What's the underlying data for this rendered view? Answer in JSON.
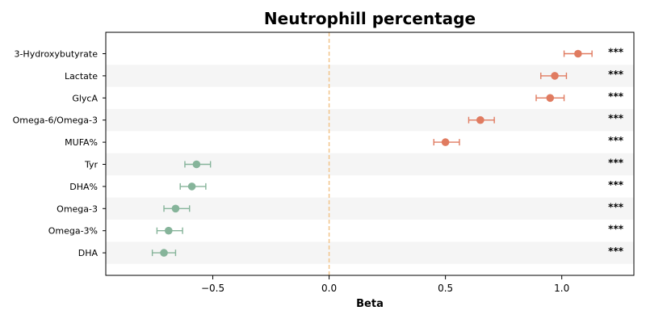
{
  "chart_data": {
    "type": "forest",
    "title": "Neutrophill percentage",
    "xlabel": "Beta",
    "xlim": [
      -0.96,
      1.31
    ],
    "x_ticks": [
      -0.5,
      0.0,
      0.5,
      1.0
    ],
    "x_tick_labels": [
      "−0.5",
      "0.0",
      "0.5",
      "1.0"
    ],
    "reference_line": 0.0,
    "reference_line_color": "#f2c48a",
    "band_color": "#f5f5f5",
    "categories": [
      "3-Hydroxybutyrate",
      "Lactate",
      "GlycA",
      "Omega-6/Omega-3",
      "MUFA%",
      "Tyr",
      "DHA%",
      "Omega-3",
      "Omega-3%",
      "DHA"
    ],
    "beta": [
      1.07,
      0.97,
      0.95,
      0.65,
      0.5,
      -0.57,
      -0.59,
      -0.66,
      -0.69,
      -0.71
    ],
    "ci_lower": [
      1.01,
      0.91,
      0.89,
      0.6,
      0.45,
      -0.62,
      -0.64,
      -0.71,
      -0.74,
      -0.76
    ],
    "ci_upper": [
      1.13,
      1.02,
      1.01,
      0.71,
      0.56,
      -0.51,
      -0.53,
      -0.6,
      -0.63,
      -0.66
    ],
    "significance": [
      "***",
      "***",
      "***",
      "***",
      "***",
      "***",
      "***",
      "***",
      "***",
      "***"
    ],
    "positive_color": "#e07b60",
    "negative_color": "#86b49a"
  }
}
